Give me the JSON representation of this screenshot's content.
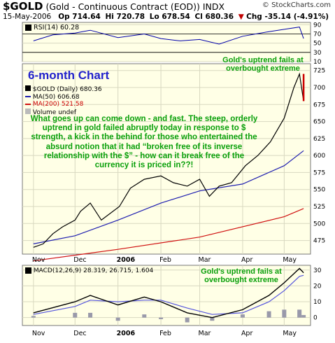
{
  "header": {
    "symbol": "$GOLD",
    "description": "(Gold - Continuous Contract (EOD)) INDX",
    "site": "© StockCharts.com",
    "date": "15-May-2006",
    "op": "Op 714.64",
    "hi": "Hi 720.78",
    "lo": "Lo 678.54",
    "cl": "Cl 680.36",
    "chg": "Chg -35.14 (-4.91%)",
    "chg_arrow": "▼"
  },
  "rsi_panel": {
    "label": "RSI(14) 60.28",
    "note_line1": "Gold's uptrend fails at",
    "note_line2": "overbought extreme"
  },
  "main_panel": {
    "title": "6-month Chart",
    "legend_price": "$GOLD (Daily) 680.36",
    "legend_ma50": "MA(50) 606.68",
    "legend_ma200": "MA(200) 521.58",
    "legend_volume": "Volume undef",
    "annotation": "What goes up can come down - and fast. The steep, orderly uptrend in gold failed abruptly today in response to $ strength, a kick in the behind for those who entertained the absurd notion that it had “broken free of its inverse relationship with the $” - how can it break free of the currency it is priced in??!",
    "x_labels": [
      "Nov",
      "Dec",
      "2006",
      "Feb",
      "Mar",
      "Apr",
      "May"
    ]
  },
  "macd_panel": {
    "label": "MACD(12,26,9) 28.319, 26.715, 1.604",
    "note_line1": "Gold's uptrend fails at",
    "note_line2": "overbought extreme",
    "x_labels": [
      "Nov",
      "Dec",
      "2006",
      "Feb",
      "Mar",
      "Apr",
      "May"
    ]
  },
  "colors": {
    "panel_bg": "#ffffe6",
    "price_up": "#000000",
    "price_down": "#cc0000",
    "ma50": "#1f1fb0",
    "ma200": "#d01010",
    "annotation": "#0aa00a",
    "title": "#2222cc"
  },
  "chart_data": [
    {
      "type": "line",
      "name": "RSI(14)",
      "ylim": [
        10,
        95
      ],
      "y_ticks": [
        10,
        30,
        50,
        70,
        90
      ],
      "reference_lines": [
        30,
        70
      ],
      "x": [
        "2005-11-01",
        "2005-11-15",
        "2005-12-01",
        "2005-12-12",
        "2006-01-01",
        "2006-01-20",
        "2006-02-01",
        "2006-02-15",
        "2006-03-01",
        "2006-03-15",
        "2006-04-01",
        "2006-04-20",
        "2006-05-01",
        "2006-05-12",
        "2006-05-15"
      ],
      "values": [
        55,
        68,
        72,
        78,
        62,
        70,
        60,
        55,
        58,
        48,
        65,
        75,
        80,
        85,
        60
      ]
    },
    {
      "type": "line",
      "name": "$GOLD (Daily)",
      "ylim": [
        455,
        735
      ],
      "y_ticks": [
        475,
        500,
        525,
        550,
        575,
        600,
        625,
        650,
        675,
        700,
        725
      ],
      "series": [
        {
          "name": "$GOLD (Daily) 680.36",
          "x": [
            "2005-11-01",
            "2005-11-08",
            "2005-11-15",
            "2005-11-22",
            "2005-12-01",
            "2005-12-05",
            "2005-12-12",
            "2005-12-20",
            "2006-01-02",
            "2006-01-10",
            "2006-01-20",
            "2006-02-01",
            "2006-02-10",
            "2006-02-20",
            "2006-03-01",
            "2006-03-08",
            "2006-03-15",
            "2006-03-24",
            "2006-04-03",
            "2006-04-12",
            "2006-04-21",
            "2006-05-01",
            "2006-05-08",
            "2006-05-12",
            "2006-05-15"
          ],
          "values": [
            465,
            470,
            485,
            495,
            505,
            518,
            530,
            505,
            525,
            552,
            565,
            570,
            560,
            555,
            565,
            540,
            555,
            560,
            585,
            600,
            620,
            655,
            700,
            720,
            680
          ]
        },
        {
          "name": "MA(50) 606.68",
          "x": [
            "2005-11-01",
            "2005-12-01",
            "2006-01-01",
            "2006-02-01",
            "2006-03-01",
            "2006-04-01",
            "2006-05-01",
            "2006-05-15"
          ],
          "values": [
            470,
            482,
            505,
            530,
            548,
            558,
            585,
            607
          ]
        },
        {
          "name": "MA(200) 521.58",
          "x": [
            "2005-11-01",
            "2006-01-01",
            "2006-03-01",
            "2006-05-01",
            "2006-05-15"
          ],
          "values": [
            445,
            462,
            480,
            510,
            522
          ]
        }
      ]
    },
    {
      "type": "line",
      "name": "MACD(12,26,9)",
      "ylim": [
        -5,
        33
      ],
      "y_ticks": [
        0,
        10,
        20,
        30
      ],
      "series": [
        {
          "name": "MACD 28.319",
          "x": [
            "2005-11-01",
            "2005-12-01",
            "2005-12-12",
            "2006-01-01",
            "2006-01-20",
            "2006-02-01",
            "2006-02-20",
            "2006-03-10",
            "2006-04-01",
            "2006-04-20",
            "2006-05-01",
            "2006-05-12",
            "2006-05-15"
          ],
          "values": [
            3,
            10,
            14,
            8,
            13,
            10,
            3,
            0,
            5,
            14,
            22,
            31,
            28.3
          ]
        },
        {
          "name": "Signal 26.715",
          "x": [
            "2005-11-01",
            "2005-12-01",
            "2005-12-12",
            "2006-01-01",
            "2006-01-20",
            "2006-02-01",
            "2006-02-20",
            "2006-03-10",
            "2006-04-01",
            "2006-04-20",
            "2006-05-01",
            "2006-05-12",
            "2006-05-15"
          ],
          "values": [
            2,
            7,
            11,
            10,
            11,
            11,
            6,
            2,
            3,
            10,
            17,
            26,
            26.7
          ]
        },
        {
          "name": "Histogram 1.604",
          "x": [
            "2005-11-01",
            "2005-12-01",
            "2005-12-12",
            "2006-01-01",
            "2006-01-20",
            "2006-02-01",
            "2006-02-20",
            "2006-03-10",
            "2006-04-01",
            "2006-04-20",
            "2006-05-01",
            "2006-05-12",
            "2006-05-15"
          ],
          "values": [
            1,
            3,
            3,
            -2,
            2,
            -1,
            -3,
            -2,
            2,
            4,
            5,
            5,
            1.6
          ]
        }
      ]
    }
  ]
}
